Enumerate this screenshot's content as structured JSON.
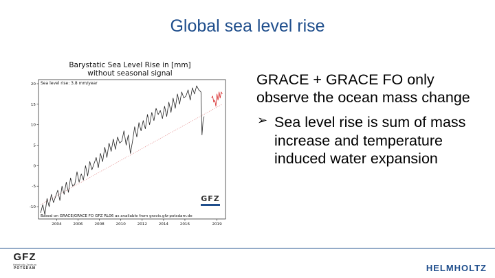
{
  "slide": {
    "title": "Global sea level rise",
    "bullet_main": "GRACE + GRACE FO only observe the ocean mass change",
    "bullet_sub": "Sea level rise is sum of mass increase and temperature induced water expansion",
    "arrow_glyph": "➢"
  },
  "footer": {
    "gfz_logo_text": "GFZ",
    "gfz_logo_subtitle": "Helmholtz-Zentrum",
    "gfz_logo_city": "POTSDAM",
    "helmholtz_logo_text": "HELMHOLTZ"
  },
  "chart_data": {
    "type": "line",
    "title": "Barystatic Sea Level Rise in [mm]",
    "subtitle": "without seasonal signal",
    "annotation": "Sea level rise: 3.8 mm/year",
    "footnote": "Based on GRACE/GRACE FO GFZ RL06 as available from gravis.gfz-potsdam.de",
    "watermark": "GFZ",
    "xlim": [
      2002.3,
      2019.8
    ],
    "ylim": [
      -13,
      21
    ],
    "x_ticks": [
      2004,
      2006,
      2008,
      2010,
      2012,
      2014,
      2016,
      2019
    ],
    "x_tick_labels": [
      "2004",
      "2006",
      "2008",
      "2010",
      "2012",
      "2014",
      "2016",
      "2019"
    ],
    "y_ticks": [
      -10,
      -5,
      0,
      5,
      10,
      15,
      20
    ],
    "y_tick_labels": [
      "-10",
      "-5",
      "0",
      "5",
      "10",
      "15",
      "20"
    ],
    "grid": false,
    "series": [
      {
        "color": "#222222",
        "x": [
          2002.5,
          2002.7,
          2002.9,
          2003.1,
          2003.3,
          2003.5,
          2003.7,
          2003.9,
          2004.1,
          2004.3,
          2004.5,
          2004.7,
          2004.9,
          2005.1,
          2005.3,
          2005.5,
          2005.7,
          2005.9,
          2006.1,
          2006.3,
          2006.5,
          2006.7,
          2006.9,
          2007.1,
          2007.3,
          2007.5,
          2007.7,
          2007.9,
          2008.1,
          2008.3,
          2008.5,
          2008.7,
          2008.9,
          2009.1,
          2009.3,
          2009.5,
          2009.7,
          2009.9,
          2010.1,
          2010.3,
          2010.5,
          2010.7,
          2010.9,
          2011.1,
          2011.3,
          2011.5,
          2011.7,
          2011.9,
          2012.1,
          2012.3,
          2012.5,
          2012.7,
          2012.9,
          2013.1,
          2013.3,
          2013.5,
          2013.7,
          2013.9,
          2014.1,
          2014.3,
          2014.5,
          2014.7,
          2014.9,
          2015.1,
          2015.3,
          2015.5,
          2015.7,
          2015.9,
          2016.1,
          2016.3,
          2016.5,
          2016.7,
          2016.9,
          2017.1,
          2017.3,
          2017.5
        ],
        "y": [
          -11.5,
          -9.5,
          -12,
          -8,
          -10,
          -7,
          -9,
          -7.5,
          -6,
          -8.5,
          -5,
          -7,
          -4,
          -6.5,
          -3,
          -5,
          -4.5,
          -1.5,
          -4,
          -2,
          -3.5,
          0,
          -2.5,
          1,
          -1,
          0.5,
          2,
          -0.5,
          3,
          1,
          4.5,
          2,
          5.5,
          3.5,
          6.5,
          4,
          7,
          5.5,
          6,
          8.5,
          5,
          7.5,
          3,
          6,
          9.5,
          7,
          10.5,
          8.5,
          11,
          9,
          12.5,
          10,
          13,
          11,
          14,
          12.5,
          13.5,
          11.5,
          14.5,
          12,
          15.5,
          13,
          16.5,
          14,
          17.5,
          15,
          18,
          16.5,
          17,
          18.5,
          16,
          19,
          17.5,
          19.5,
          18.5,
          18
        ]
      },
      {
        "color": "#222222",
        "x": [
          2017.5,
          2017.6,
          2017.7,
          2017.8
        ],
        "y": [
          18,
          7.5,
          11,
          12
        ]
      },
      {
        "color": "#d62728",
        "x": [
          2018.5,
          2018.6,
          2018.7,
          2018.8,
          2018.9,
          2019.0,
          2019.1,
          2019.2,
          2019.3,
          2019.4,
          2019.5
        ],
        "y": [
          16.5,
          17,
          15.5,
          16,
          14.5,
          17.5,
          16,
          18,
          16.5,
          18,
          17.5
        ]
      }
    ],
    "trend": {
      "color": "#e8a0a0",
      "x": [
        2002.5,
        2019.5
      ],
      "y": [
        -9.5,
        15
      ]
    }
  }
}
